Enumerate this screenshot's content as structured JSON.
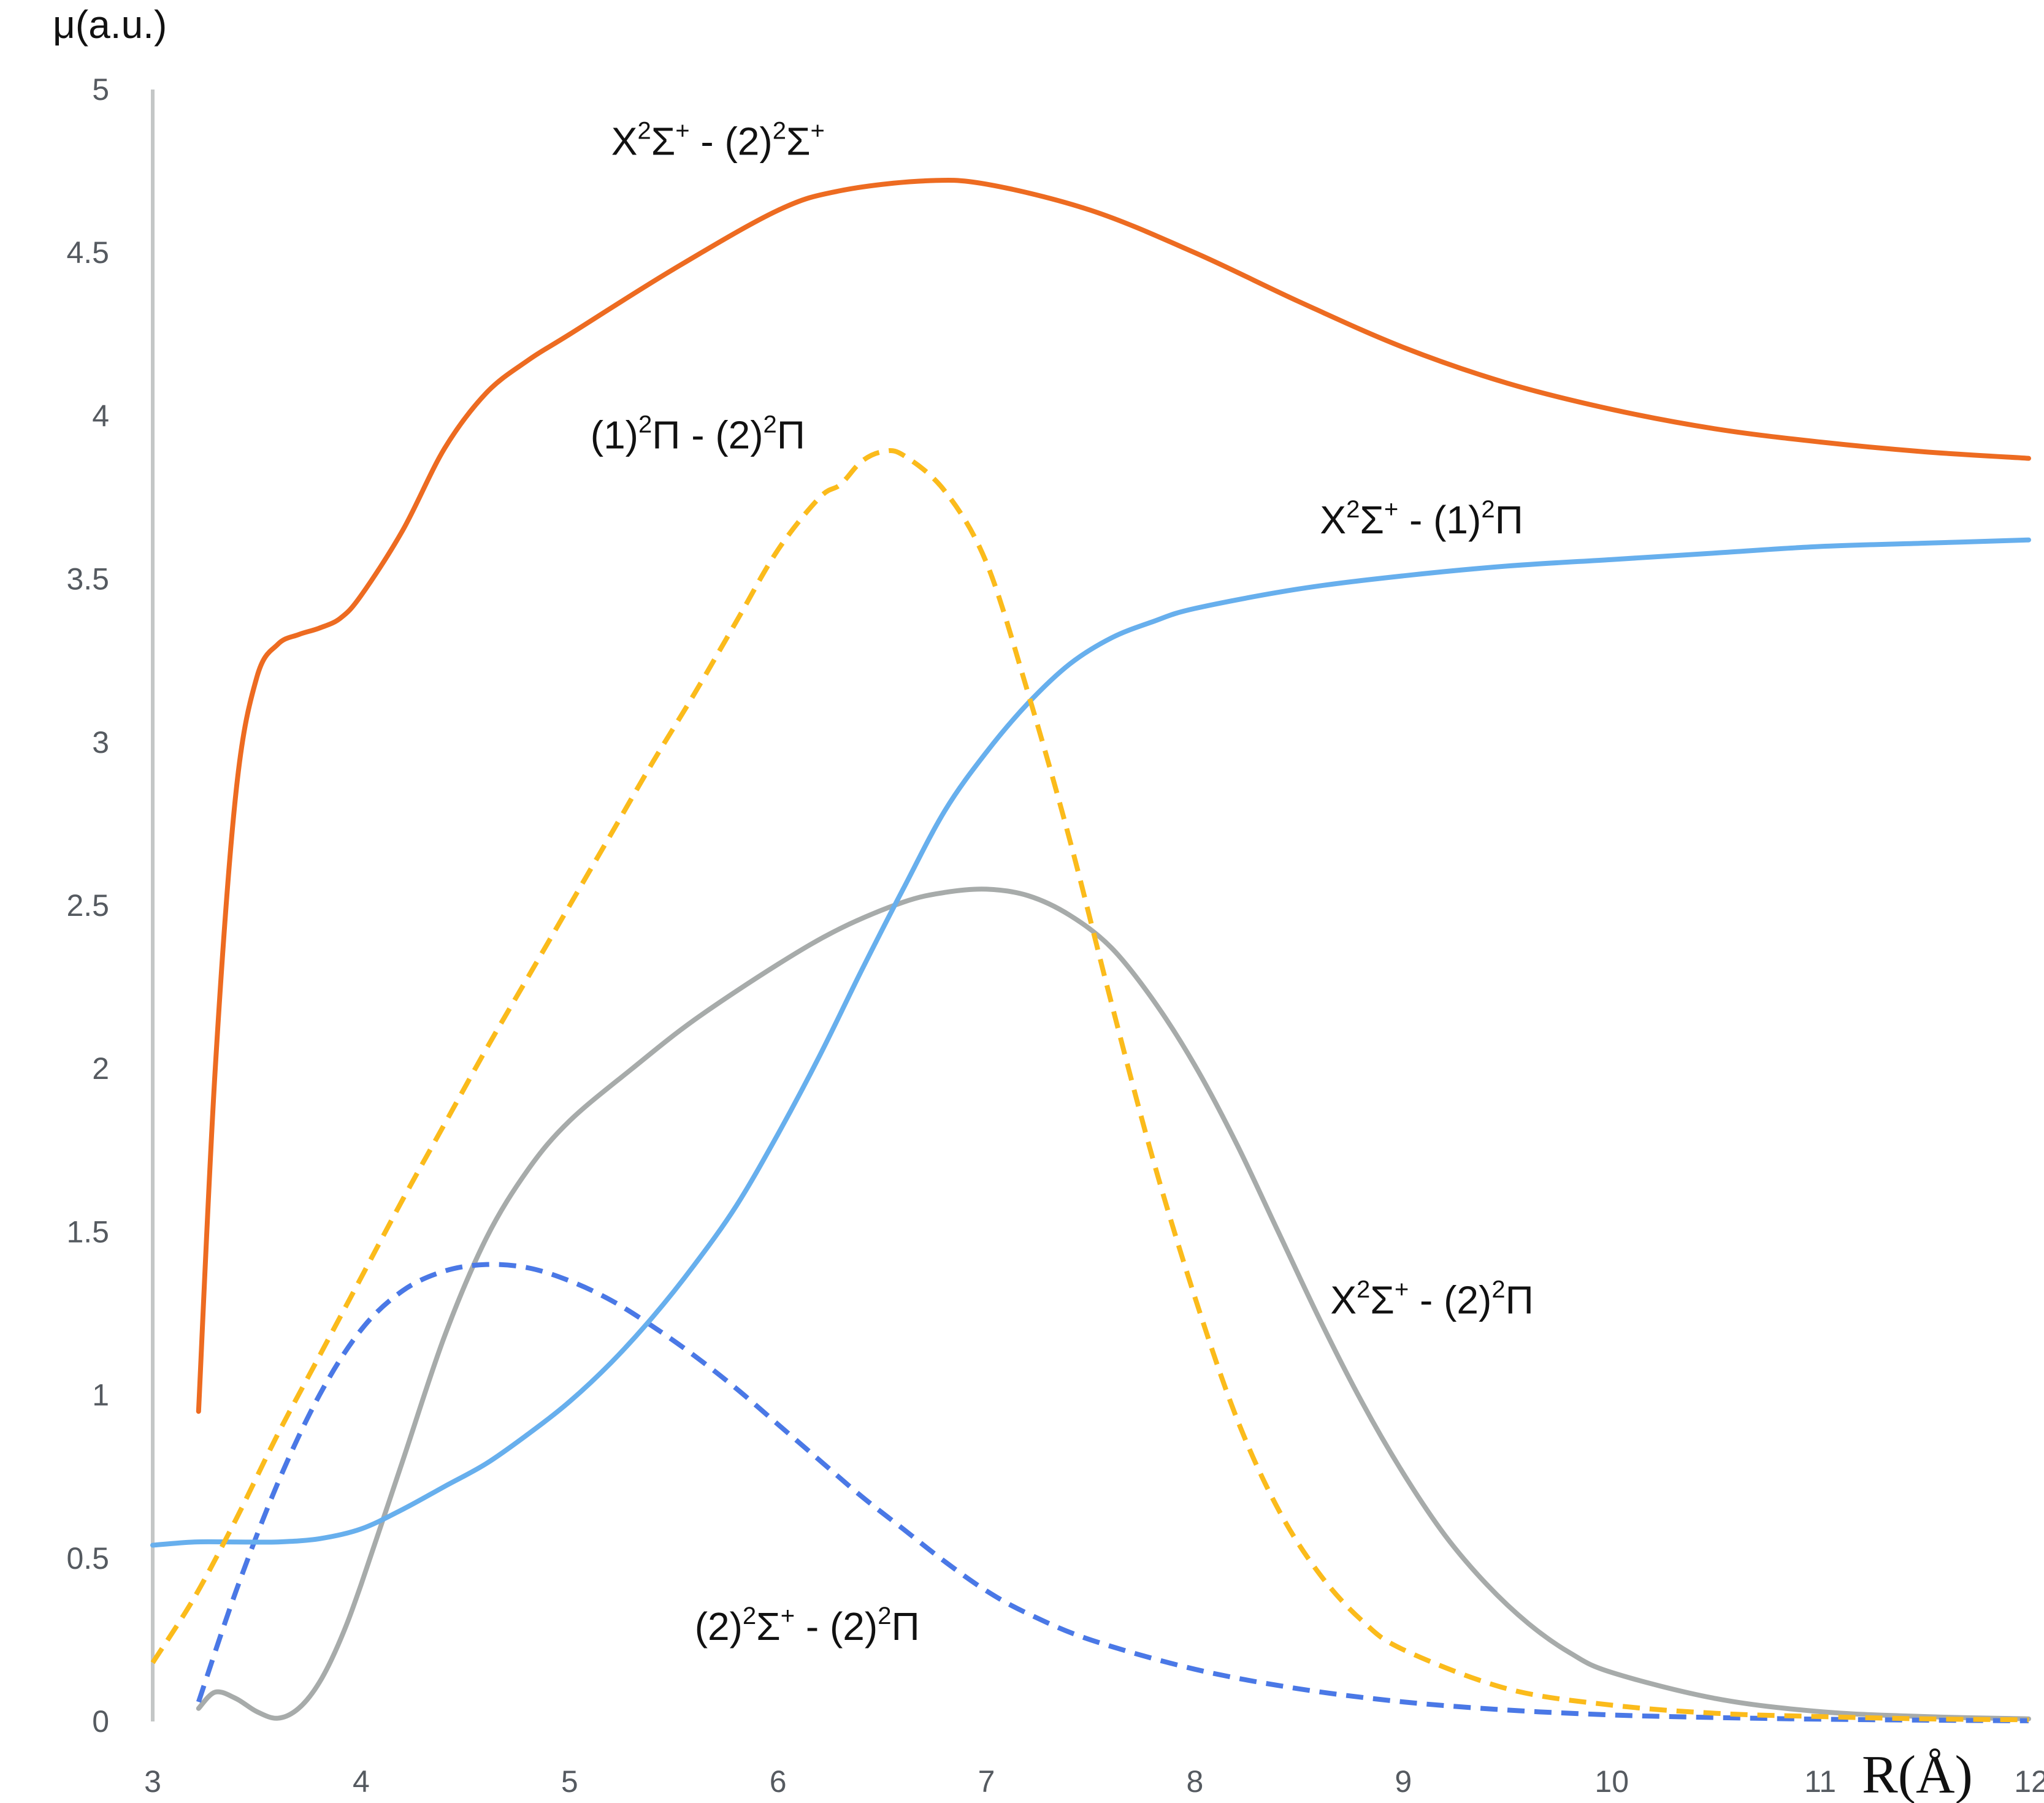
{
  "chart_data": {
    "type": "line",
    "title": "",
    "xlabel": "R(Å)",
    "ylabel": "μ(a.u.)",
    "xlim": [
      3,
      12
    ],
    "ylim": [
      0,
      5
    ],
    "x_ticks": [
      "3",
      "4",
      "5",
      "6",
      "7",
      "8",
      "9",
      "10",
      "11",
      "12"
    ],
    "y_ticks": [
      "0",
      "0.5",
      "1",
      "1.5",
      "2",
      "2.5",
      "3",
      "3.5",
      "4",
      "4.5",
      "5"
    ],
    "series": [
      {
        "name": "X²Σ⁺ - (2)²Σ⁺",
        "label": {
          "base": "X",
          "sup1": "2",
          "mid": "Σ",
          "sup2": "+",
          "rest": " - (2)",
          "sup3": "2",
          "end": "Σ",
          "sup4": "+"
        },
        "color": "#ED6B21",
        "style": "solid",
        "label_at": [
          5.2,
          4.8
        ],
        "x": [
          3.22,
          3.3,
          3.4,
          3.5,
          3.6,
          3.7,
          3.8,
          3.9,
          4.0,
          4.2,
          4.4,
          4.6,
          4.8,
          5.0,
          5.5,
          6.0,
          6.3,
          6.7,
          7.0,
          7.5,
          8.0,
          8.5,
          9.0,
          9.5,
          10.0,
          10.5,
          11.0,
          11.5,
          12.0
        ],
        "y": [
          0.95,
          2.0,
          2.85,
          3.2,
          3.3,
          3.33,
          3.35,
          3.38,
          3.45,
          3.65,
          3.9,
          4.07,
          4.17,
          4.25,
          4.45,
          4.63,
          4.69,
          4.72,
          4.71,
          4.63,
          4.5,
          4.35,
          4.21,
          4.1,
          4.02,
          3.96,
          3.92,
          3.89,
          3.87
        ]
      },
      {
        "name": "(1)²Π - (2)²Π",
        "label": {
          "base": "(1)",
          "sup1": "2",
          "mid": "Π",
          "sup2": "",
          "rest": " - (2)",
          "sup3": "2",
          "end": "Π",
          "sup4": ""
        },
        "color": "#FBBB1B",
        "style": "dashed",
        "label_at": [
          5.1,
          3.9
        ],
        "x": [
          3.0,
          3.2,
          3.4,
          3.6,
          3.8,
          4.0,
          4.2,
          4.4,
          4.6,
          4.8,
          5.0,
          5.2,
          5.4,
          5.6,
          5.8,
          6.0,
          6.2,
          6.3,
          6.4,
          6.5,
          6.6,
          6.8,
          7.0,
          7.2,
          7.4,
          7.6,
          7.8,
          8.0,
          8.2,
          8.4,
          8.6,
          8.8,
          9.0,
          9.5,
          10.0,
          10.5,
          11.0,
          11.5,
          12.0
        ],
        "y": [
          0.18,
          0.38,
          0.62,
          0.88,
          1.12,
          1.36,
          1.6,
          1.83,
          2.06,
          2.28,
          2.5,
          2.72,
          2.94,
          3.15,
          3.37,
          3.59,
          3.75,
          3.79,
          3.86,
          3.89,
          3.88,
          3.77,
          3.55,
          3.15,
          2.7,
          2.2,
          1.72,
          1.3,
          0.93,
          0.65,
          0.45,
          0.31,
          0.22,
          0.1,
          0.05,
          0.025,
          0.015,
          0.008,
          0.005
        ]
      },
      {
        "name": "X²Σ⁺ - (1)²Π",
        "label": {
          "base": "X",
          "sup1": "2",
          "mid": "Σ",
          "sup2": "+",
          "rest": " - (1)",
          "sup3": "2",
          "end": "Π",
          "sup4": ""
        },
        "color": "#67AFED",
        "style": "solid",
        "label_at": [
          8.6,
          3.64
        ],
        "x": [
          3.0,
          3.2,
          3.4,
          3.6,
          3.8,
          4.0,
          4.2,
          4.4,
          4.6,
          4.8,
          5.0,
          5.2,
          5.4,
          5.6,
          5.8,
          6.0,
          6.2,
          6.4,
          6.6,
          6.8,
          7.0,
          7.2,
          7.4,
          7.6,
          7.8,
          8.0,
          8.5,
          9.0,
          9.5,
          10.0,
          10.5,
          11.0,
          11.5,
          12.0
        ],
        "y": [
          0.54,
          0.55,
          0.55,
          0.55,
          0.56,
          0.59,
          0.65,
          0.72,
          0.79,
          0.88,
          0.98,
          1.1,
          1.24,
          1.4,
          1.58,
          1.8,
          2.04,
          2.3,
          2.55,
          2.79,
          2.97,
          3.12,
          3.24,
          3.32,
          3.37,
          3.41,
          3.47,
          3.51,
          3.54,
          3.56,
          3.58,
          3.6,
          3.61,
          3.62
        ]
      },
      {
        "name": "X²Σ⁺ - (2)²Π",
        "label": {
          "base": "X",
          "sup1": "2",
          "mid": "Σ",
          "sup2": "+",
          "rest": " - (2)",
          "sup3": "2",
          "end": "Π",
          "sup4": ""
        },
        "color": "#A7ABAA",
        "style": "solid",
        "label_at": [
          8.65,
          1.25
        ],
        "x": [
          3.22,
          3.3,
          3.4,
          3.5,
          3.6,
          3.7,
          3.8,
          3.9,
          4.0,
          4.2,
          4.4,
          4.6,
          4.8,
          5.0,
          5.3,
          5.6,
          6.0,
          6.3,
          6.6,
          6.8,
          7.0,
          7.2,
          7.4,
          7.6,
          7.8,
          8.0,
          8.2,
          8.4,
          8.6,
          8.8,
          9.0,
          9.2,
          9.4,
          9.6,
          9.8,
          10.0,
          10.5,
          11.0,
          11.5,
          12.0
        ],
        "y": [
          0.04,
          0.09,
          0.07,
          0.03,
          0.01,
          0.04,
          0.12,
          0.25,
          0.42,
          0.8,
          1.18,
          1.48,
          1.69,
          1.84,
          2.0,
          2.15,
          2.32,
          2.43,
          2.51,
          2.54,
          2.55,
          2.53,
          2.47,
          2.37,
          2.21,
          2.01,
          1.77,
          1.5,
          1.23,
          0.98,
          0.76,
          0.57,
          0.42,
          0.3,
          0.21,
          0.15,
          0.07,
          0.03,
          0.015,
          0.008
        ]
      },
      {
        "name": "(2)²Σ⁺ - (2)²Π",
        "label": {
          "base": "(2)",
          "sup1": "2",
          "mid": "Σ",
          "sup2": "+",
          "rest": " - (2)",
          "sup3": "2",
          "end": "Π",
          "sup4": ""
        },
        "color": "#4A78E6",
        "style": "dashed",
        "label_at": [
          5.6,
          0.25
        ],
        "x": [
          3.22,
          3.4,
          3.6,
          3.8,
          4.0,
          4.2,
          4.4,
          4.6,
          4.8,
          5.0,
          5.2,
          5.4,
          5.6,
          5.8,
          6.0,
          6.2,
          6.4,
          6.6,
          6.8,
          7.0,
          7.2,
          7.5,
          8.0,
          8.5,
          9.0,
          9.5,
          10.0,
          10.5,
          11.0,
          11.5,
          12.0
        ],
        "y": [
          0.06,
          0.4,
          0.73,
          1.0,
          1.2,
          1.32,
          1.38,
          1.4,
          1.39,
          1.35,
          1.29,
          1.21,
          1.12,
          1.02,
          0.91,
          0.8,
          0.69,
          0.59,
          0.49,
          0.4,
          0.33,
          0.25,
          0.16,
          0.1,
          0.06,
          0.035,
          0.02,
          0.012,
          0.007,
          0.004,
          0.002
        ]
      }
    ]
  }
}
